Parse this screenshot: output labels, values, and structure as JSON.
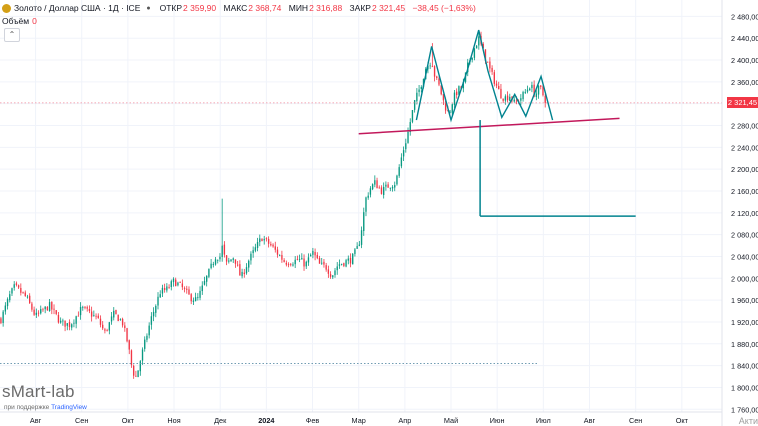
{
  "header": {
    "title": "Золото / Доллар США · 1Д · ICE",
    "ohlc": [
      {
        "label": "ОТКР",
        "value": "2 359,90"
      },
      {
        "label": "МАКС",
        "value": "2 368,74"
      },
      {
        "label": "МИН",
        "value": "2 316,88"
      },
      {
        "label": "ЗАКР",
        "value": "2 321,45"
      },
      {
        "label": "",
        "value": "−38,45 (−1,63%)"
      }
    ],
    "volume_label": "Объём",
    "volume_value": "0",
    "collapse_glyph": "⌃"
  },
  "branding": {
    "name": "sMart-lab",
    "support_prefix": "при поддержке",
    "support_brand": "TradingView",
    "corner_text": "Акти"
  },
  "current_price": {
    "label": "2 321,45",
    "value": 2321.45
  },
  "colors": {
    "up": "#089981",
    "down": "#f23645",
    "neckline": "#c2185b",
    "annotation": "#00838f",
    "hline": "#f28b9b"
  },
  "chart_data": {
    "type": "candlestick",
    "ylim": [
      1755,
      2510
    ],
    "y_ticks": [
      {
        "v": 2520,
        "label": "2 520,00"
      },
      {
        "v": 2480,
        "label": "2 480,00"
      },
      {
        "v": 2440,
        "label": "2 440,00"
      },
      {
        "v": 2400,
        "label": "2 400,00"
      },
      {
        "v": 2360,
        "label": "2 360,00"
      },
      {
        "v": 2320,
        "label": "2 320,00"
      },
      {
        "v": 2280,
        "label": "2 280,00"
      },
      {
        "v": 2240,
        "label": "2 240,00"
      },
      {
        "v": 2200,
        "label": "2 200,00"
      },
      {
        "v": 2160,
        "label": "2 160,00"
      },
      {
        "v": 2120,
        "label": "2 120,00"
      },
      {
        "v": 2080,
        "label": "2 080,00"
      },
      {
        "v": 2040,
        "label": "2 040,00"
      },
      {
        "v": 2000,
        "label": "2 000,00"
      },
      {
        "v": 1960,
        "label": "1 960,00"
      },
      {
        "v": 1920,
        "label": "1 920,00"
      },
      {
        "v": 1880,
        "label": "1 880,00"
      },
      {
        "v": 1840,
        "label": "1 840,00"
      },
      {
        "v": 1800,
        "label": "1 800,00"
      },
      {
        "v": 1760,
        "label": "1 760,00"
      }
    ],
    "x_ticks": [
      {
        "t": 0,
        "label": "Авг"
      },
      {
        "t": 1,
        "label": "Сен"
      },
      {
        "t": 2,
        "label": "Окт"
      },
      {
        "t": 3,
        "label": "Ноя"
      },
      {
        "t": 4,
        "label": "Дек"
      },
      {
        "t": 5,
        "label": "2024",
        "bold": true
      },
      {
        "t": 6,
        "label": "Фев"
      },
      {
        "t": 7,
        "label": "Мар"
      },
      {
        "t": 8,
        "label": "Апр"
      },
      {
        "t": 9,
        "label": "Май"
      },
      {
        "t": 10,
        "label": "Июн"
      },
      {
        "t": 11,
        "label": "Июл"
      },
      {
        "t": 12,
        "label": "Авг"
      },
      {
        "t": 13,
        "label": "Сен"
      },
      {
        "t": 14,
        "label": "Окт"
      }
    ],
    "t_range": [
      -0.77,
      14.87
    ],
    "waypoints": [
      [
        -0.75,
        1925
      ],
      [
        -0.55,
        1970
      ],
      [
        -0.45,
        1985
      ],
      [
        -0.2,
        1965
      ],
      [
        0.0,
        1930
      ],
      [
        0.3,
        1950
      ],
      [
        0.55,
        1918
      ],
      [
        0.75,
        1915
      ],
      [
        1.0,
        1945
      ],
      [
        1.2,
        1935
      ],
      [
        1.35,
        1925
      ],
      [
        1.5,
        1900
      ],
      [
        1.7,
        1935
      ],
      [
        1.88,
        1920
      ],
      [
        2.0,
        1880
      ],
      [
        2.1,
        1830
      ],
      [
        2.18,
        1818
      ],
      [
        2.3,
        1860
      ],
      [
        2.5,
        1925
      ],
      [
        2.7,
        1975
      ],
      [
        2.85,
        1980
      ],
      [
        3.0,
        1995
      ],
      [
        3.15,
        1985
      ],
      [
        3.35,
        1965
      ],
      [
        3.5,
        1960
      ],
      [
        3.7,
        2000
      ],
      [
        3.9,
        2040
      ],
      [
        4.0,
        2040
      ],
      [
        4.05,
        2060
      ],
      [
        4.12,
        2025
      ],
      [
        4.3,
        2040
      ],
      [
        4.45,
        2000
      ],
      [
        4.6,
        2030
      ],
      [
        4.8,
        2060
      ],
      [
        4.9,
        2075
      ],
      [
        5.1,
        2060
      ],
      [
        5.25,
        2045
      ],
      [
        5.4,
        2030
      ],
      [
        5.55,
        2030
      ],
      [
        5.7,
        2035
      ],
      [
        5.85,
        2025
      ],
      [
        6.0,
        2048
      ],
      [
        6.15,
        2025
      ],
      [
        6.3,
        2020
      ],
      [
        6.42,
        2005
      ],
      [
        6.55,
        2025
      ],
      [
        6.7,
        2030
      ],
      [
        6.85,
        2035
      ],
      [
        7.0,
        2060
      ],
      [
        7.08,
        2100
      ],
      [
        7.15,
        2145
      ],
      [
        7.25,
        2165
      ],
      [
        7.35,
        2175
      ],
      [
        7.5,
        2160
      ],
      [
        7.65,
        2170
      ],
      [
        7.8,
        2175
      ],
      [
        7.95,
        2230
      ],
      [
        8.05,
        2260
      ],
      [
        8.2,
        2320
      ],
      [
        8.35,
        2355
      ],
      [
        8.45,
        2385
      ],
      [
        8.58,
        2400
      ],
      [
        8.65,
        2370
      ],
      [
        8.75,
        2350
      ],
      [
        8.85,
        2320
      ],
      [
        8.95,
        2300
      ],
      [
        9.05,
        2330
      ],
      [
        9.15,
        2345
      ],
      [
        9.25,
        2350
      ],
      [
        9.38,
        2395
      ],
      [
        9.5,
        2420
      ],
      [
        9.6,
        2440
      ],
      [
        9.72,
        2410
      ],
      [
        9.85,
        2380
      ],
      [
        9.95,
        2360
      ],
      [
        10.05,
        2340
      ],
      [
        10.15,
        2330
      ],
      [
        10.28,
        2335
      ],
      [
        10.38,
        2320
      ],
      [
        10.5,
        2330
      ],
      [
        10.6,
        2340
      ],
      [
        10.72,
        2355
      ],
      [
        10.82,
        2335
      ],
      [
        10.92,
        2350
      ],
      [
        10.98,
        2340
      ],
      [
        11.04,
        2321.45
      ]
    ],
    "candle_count": 247,
    "wick_spikes": [
      {
        "t": 4.05,
        "high": 2146
      },
      {
        "t": 9.62,
        "high": 2452
      },
      {
        "t": 8.58,
        "high": 2431
      }
    ],
    "annotations": {
      "neckline": [
        [
          7.0,
          2265
        ],
        [
          12.65,
          2293
        ]
      ],
      "head_shoulders_path": [
        [
          8.25,
          2290
        ],
        [
          8.58,
          2425
        ],
        [
          8.75,
          2370
        ],
        [
          9.0,
          2290
        ],
        [
          9.35,
          2380
        ],
        [
          9.6,
          2455
        ],
        [
          9.8,
          2380
        ],
        [
          10.1,
          2295
        ],
        [
          10.38,
          2337
        ],
        [
          10.62,
          2297
        ],
        [
          10.95,
          2370
        ],
        [
          11.2,
          2290
        ]
      ],
      "target_vertical": {
        "t": 9.63,
        "from": 2290,
        "to": 2114
      },
      "target_horizontal": {
        "from_t": 9.63,
        "to_t": 13.0,
        "v": 2114
      },
      "current_price_line": 2321.45,
      "dotted_hline": {
        "v": 1844,
        "to_t": 10.9
      }
    }
  }
}
